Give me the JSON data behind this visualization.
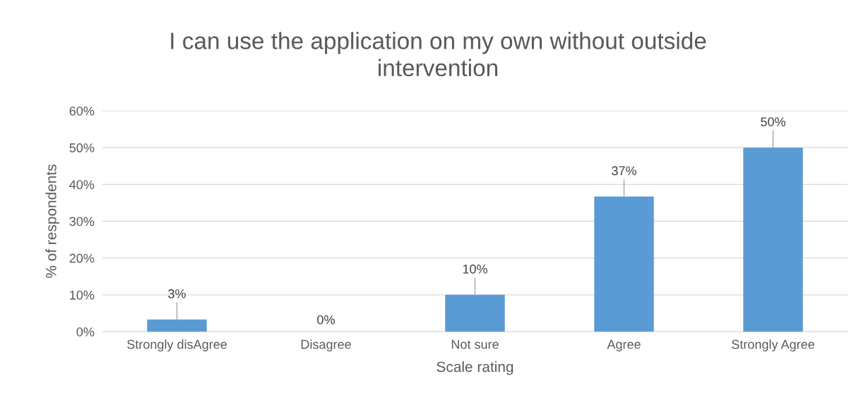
{
  "chart_data": {
    "type": "bar",
    "title": "I can use the application on my own without outside\nintervention",
    "xlabel": "Scale rating",
    "ylabel": "% of respondents",
    "categories": [
      "Strongly disAgree",
      "Disagree",
      "Not sure",
      "Agree",
      "Strongly Agree"
    ],
    "values": [
      3.3,
      0,
      10,
      36.7,
      50
    ],
    "value_labels": [
      "3%",
      "0%",
      "10%",
      "37%",
      "50%"
    ],
    "color": "#5b9bd5",
    "ylim": [
      0,
      60
    ],
    "yticks": [
      {
        "value": 0,
        "label": "0%"
      },
      {
        "value": 10,
        "label": "10%"
      },
      {
        "value": 20,
        "label": "20%"
      },
      {
        "value": 30,
        "label": "30%"
      },
      {
        "value": 40,
        "label": "40%"
      },
      {
        "value": 50,
        "label": "50%"
      },
      {
        "value": 60,
        "label": "60%"
      }
    ],
    "grid": "y"
  }
}
